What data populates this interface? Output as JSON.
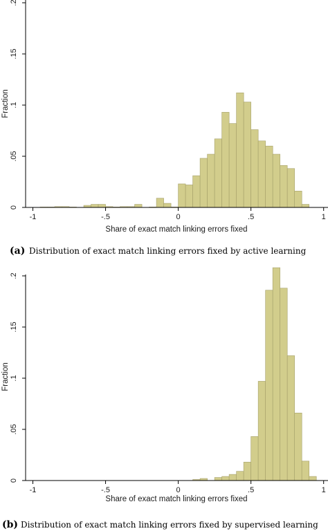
{
  "chart_data": [
    {
      "type": "histogram",
      "xlabel": "Share of exact match linking errors fixed",
      "ylabel": "Fraction",
      "xlim": [
        -1.05,
        1.03
      ],
      "ylim": [
        0,
        0.2
      ],
      "xticks": [
        "-1",
        "-.5",
        "0",
        ".5",
        "1"
      ],
      "yticks": [
        "0",
        ".05",
        ".1",
        ".15",
        ".2"
      ],
      "grid": false,
      "bin_width": 0.05,
      "bins": [
        {
          "x0": -0.95,
          "value": 0.0004
        },
        {
          "x0": -0.9,
          "value": 0.0004
        },
        {
          "x0": -0.85,
          "value": 0.0008
        },
        {
          "x0": -0.8,
          "value": 0.0008
        },
        {
          "x0": -0.75,
          "value": 0.0004
        },
        {
          "x0": -0.65,
          "value": 0.002
        },
        {
          "x0": -0.6,
          "value": 0.003
        },
        {
          "x0": -0.55,
          "value": 0.003
        },
        {
          "x0": -0.5,
          "value": 0.0008
        },
        {
          "x0": -0.45,
          "value": 0.0004
        },
        {
          "x0": -0.4,
          "value": 0.0008
        },
        {
          "x0": -0.35,
          "value": 0.0008
        },
        {
          "x0": -0.3,
          "value": 0.003
        },
        {
          "x0": -0.2,
          "value": 0.0004
        },
        {
          "x0": -0.15,
          "value": 0.009
        },
        {
          "x0": -0.1,
          "value": 0.004
        },
        {
          "x0": -0.05,
          "value": 0.0004
        },
        {
          "x0": 0.0,
          "value": 0.023
        },
        {
          "x0": 0.05,
          "value": 0.022
        },
        {
          "x0": 0.1,
          "value": 0.031
        },
        {
          "x0": 0.15,
          "value": 0.048
        },
        {
          "x0": 0.2,
          "value": 0.052
        },
        {
          "x0": 0.25,
          "value": 0.067
        },
        {
          "x0": 0.3,
          "value": 0.093
        },
        {
          "x0": 0.35,
          "value": 0.082
        },
        {
          "x0": 0.4,
          "value": 0.112
        },
        {
          "x0": 0.45,
          "value": 0.103
        },
        {
          "x0": 0.5,
          "value": 0.076
        },
        {
          "x0": 0.55,
          "value": 0.065
        },
        {
          "x0": 0.6,
          "value": 0.06
        },
        {
          "x0": 0.65,
          "value": 0.052
        },
        {
          "x0": 0.7,
          "value": 0.041
        },
        {
          "x0": 0.75,
          "value": 0.038
        },
        {
          "x0": 0.8,
          "value": 0.016
        },
        {
          "x0": 0.85,
          "value": 0.003
        }
      ]
    },
    {
      "type": "histogram",
      "xlabel": "Share of exact match linking errors fixed",
      "ylabel": "Fraction",
      "xlim": [
        -1.05,
        1.03
      ],
      "ylim": [
        0,
        0.2
      ],
      "xticks": [
        "-1",
        "-.5",
        "0",
        ".5",
        "1"
      ],
      "yticks": [
        "0",
        ".05",
        ".1",
        ".15",
        ".2"
      ],
      "grid": false,
      "bin_width": 0.05,
      "bins": [
        {
          "x0": 0.1,
          "value": 0.001
        },
        {
          "x0": 0.15,
          "value": 0.002
        },
        {
          "x0": 0.25,
          "value": 0.003
        },
        {
          "x0": 0.3,
          "value": 0.004
        },
        {
          "x0": 0.35,
          "value": 0.006
        },
        {
          "x0": 0.4,
          "value": 0.009
        },
        {
          "x0": 0.45,
          "value": 0.018
        },
        {
          "x0": 0.5,
          "value": 0.043
        },
        {
          "x0": 0.55,
          "value": 0.097
        },
        {
          "x0": 0.6,
          "value": 0.186
        },
        {
          "x0": 0.65,
          "value": 0.208
        },
        {
          "x0": 0.7,
          "value": 0.188
        },
        {
          "x0": 0.75,
          "value": 0.122
        },
        {
          "x0": 0.8,
          "value": 0.066
        },
        {
          "x0": 0.85,
          "value": 0.019
        },
        {
          "x0": 0.9,
          "value": 0.004
        }
      ]
    }
  ],
  "captions": [
    {
      "tag": "(a)",
      "text": "Distribution of exact match linking errors fixed by active learning"
    },
    {
      "tag": "(b)",
      "text": "Distribution of exact match linking errors fixed by supervised learning"
    }
  ],
  "colors": {
    "bar_fill": "#d2cd8c",
    "bar_stroke": "#a5a06a"
  }
}
